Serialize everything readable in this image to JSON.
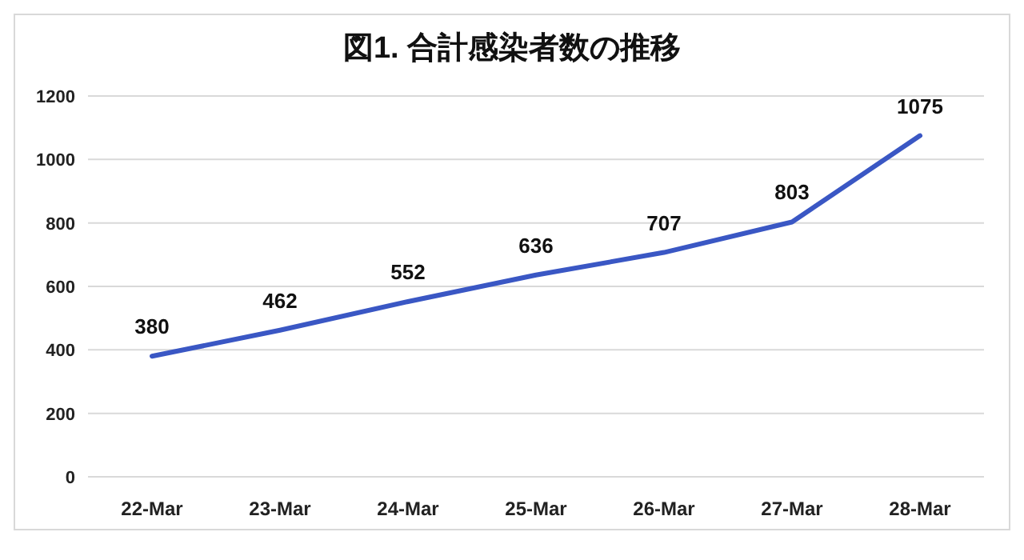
{
  "chart_data": {
    "type": "line",
    "title": "図1. 合計感染者数の推移",
    "categories": [
      "22-Mar",
      "23-Mar",
      "24-Mar",
      "25-Mar",
      "26-Mar",
      "27-Mar",
      "28-Mar"
    ],
    "series": [
      {
        "color": "#3a57c4",
        "values": [
          380,
          462,
          552,
          636,
          707,
          803,
          1075
        ]
      }
    ],
    "ylim": [
      0,
      1200
    ],
    "yticks": [
      0,
      200,
      400,
      600,
      800,
      1000,
      1200
    ],
    "grid": "y",
    "data_labels": true
  }
}
